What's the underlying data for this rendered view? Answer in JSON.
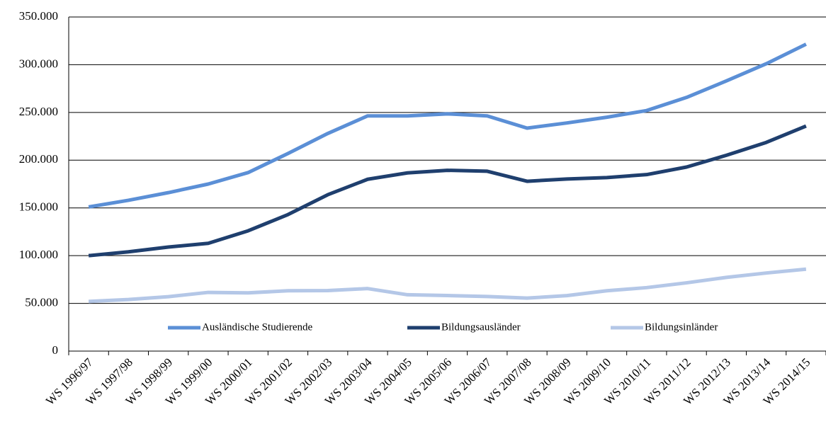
{
  "chart_data": {
    "type": "line",
    "categories": [
      "WS 1996/97",
      "WS 1997/98",
      "WS 1998/99",
      "WS 1999/00",
      "WS 2000/01",
      "WS 2001/02",
      "WS 2002/03",
      "WS 2003/04",
      "WS 2004/05",
      "WS 2005/06",
      "WS 2006/07",
      "WS 2007/08",
      "WS 2008/09",
      "WS 2009/10",
      "WS 2010/11",
      "WS 2011/12",
      "WS 2012/13",
      "WS 2013/14",
      "WS 2014/15"
    ],
    "series": [
      {
        "name": "Ausländische Studierende",
        "color": "#5b8fd6",
        "values": [
          151000,
          158000,
          166000,
          175000,
          187000,
          207000,
          228000,
          246400,
          246400,
          248500,
          246400,
          233600,
          239000,
          245000,
          252000,
          265700,
          283000,
          301000,
          321500
        ]
      },
      {
        "name": "Bildungsausländer",
        "color": "#1f3f6e",
        "values": [
          100000,
          104000,
          109000,
          112900,
          126000,
          143000,
          163800,
          180000,
          186700,
          189400,
          188400,
          177900,
          180300,
          181800,
          184900,
          192800,
          205100,
          218600,
          235800
        ]
      },
      {
        "name": "Bildungsinländer",
        "color": "#b4c7e7",
        "values": [
          52000,
          54000,
          57000,
          61500,
          61000,
          63200,
          63400,
          65500,
          59000,
          58200,
          57200,
          55500,
          58100,
          63200,
          66500,
          71500,
          77200,
          81800,
          85800
        ]
      }
    ],
    "ylim": [
      0,
      350000
    ],
    "yticks": [
      0,
      {
        "value": 50000,
        "label": "50.000"
      },
      {
        "value": 100000,
        "label": "100.000"
      },
      {
        "value": 150000,
        "label": "150.000"
      },
      {
        "value": 200000,
        "label": "200.000"
      },
      {
        "value": 250000,
        "label": "250.000"
      },
      {
        "value": 300000,
        "label": "300.000"
      },
      {
        "value": 350000,
        "label": "350.000"
      }
    ],
    "grid": true,
    "legend": "bottom"
  }
}
